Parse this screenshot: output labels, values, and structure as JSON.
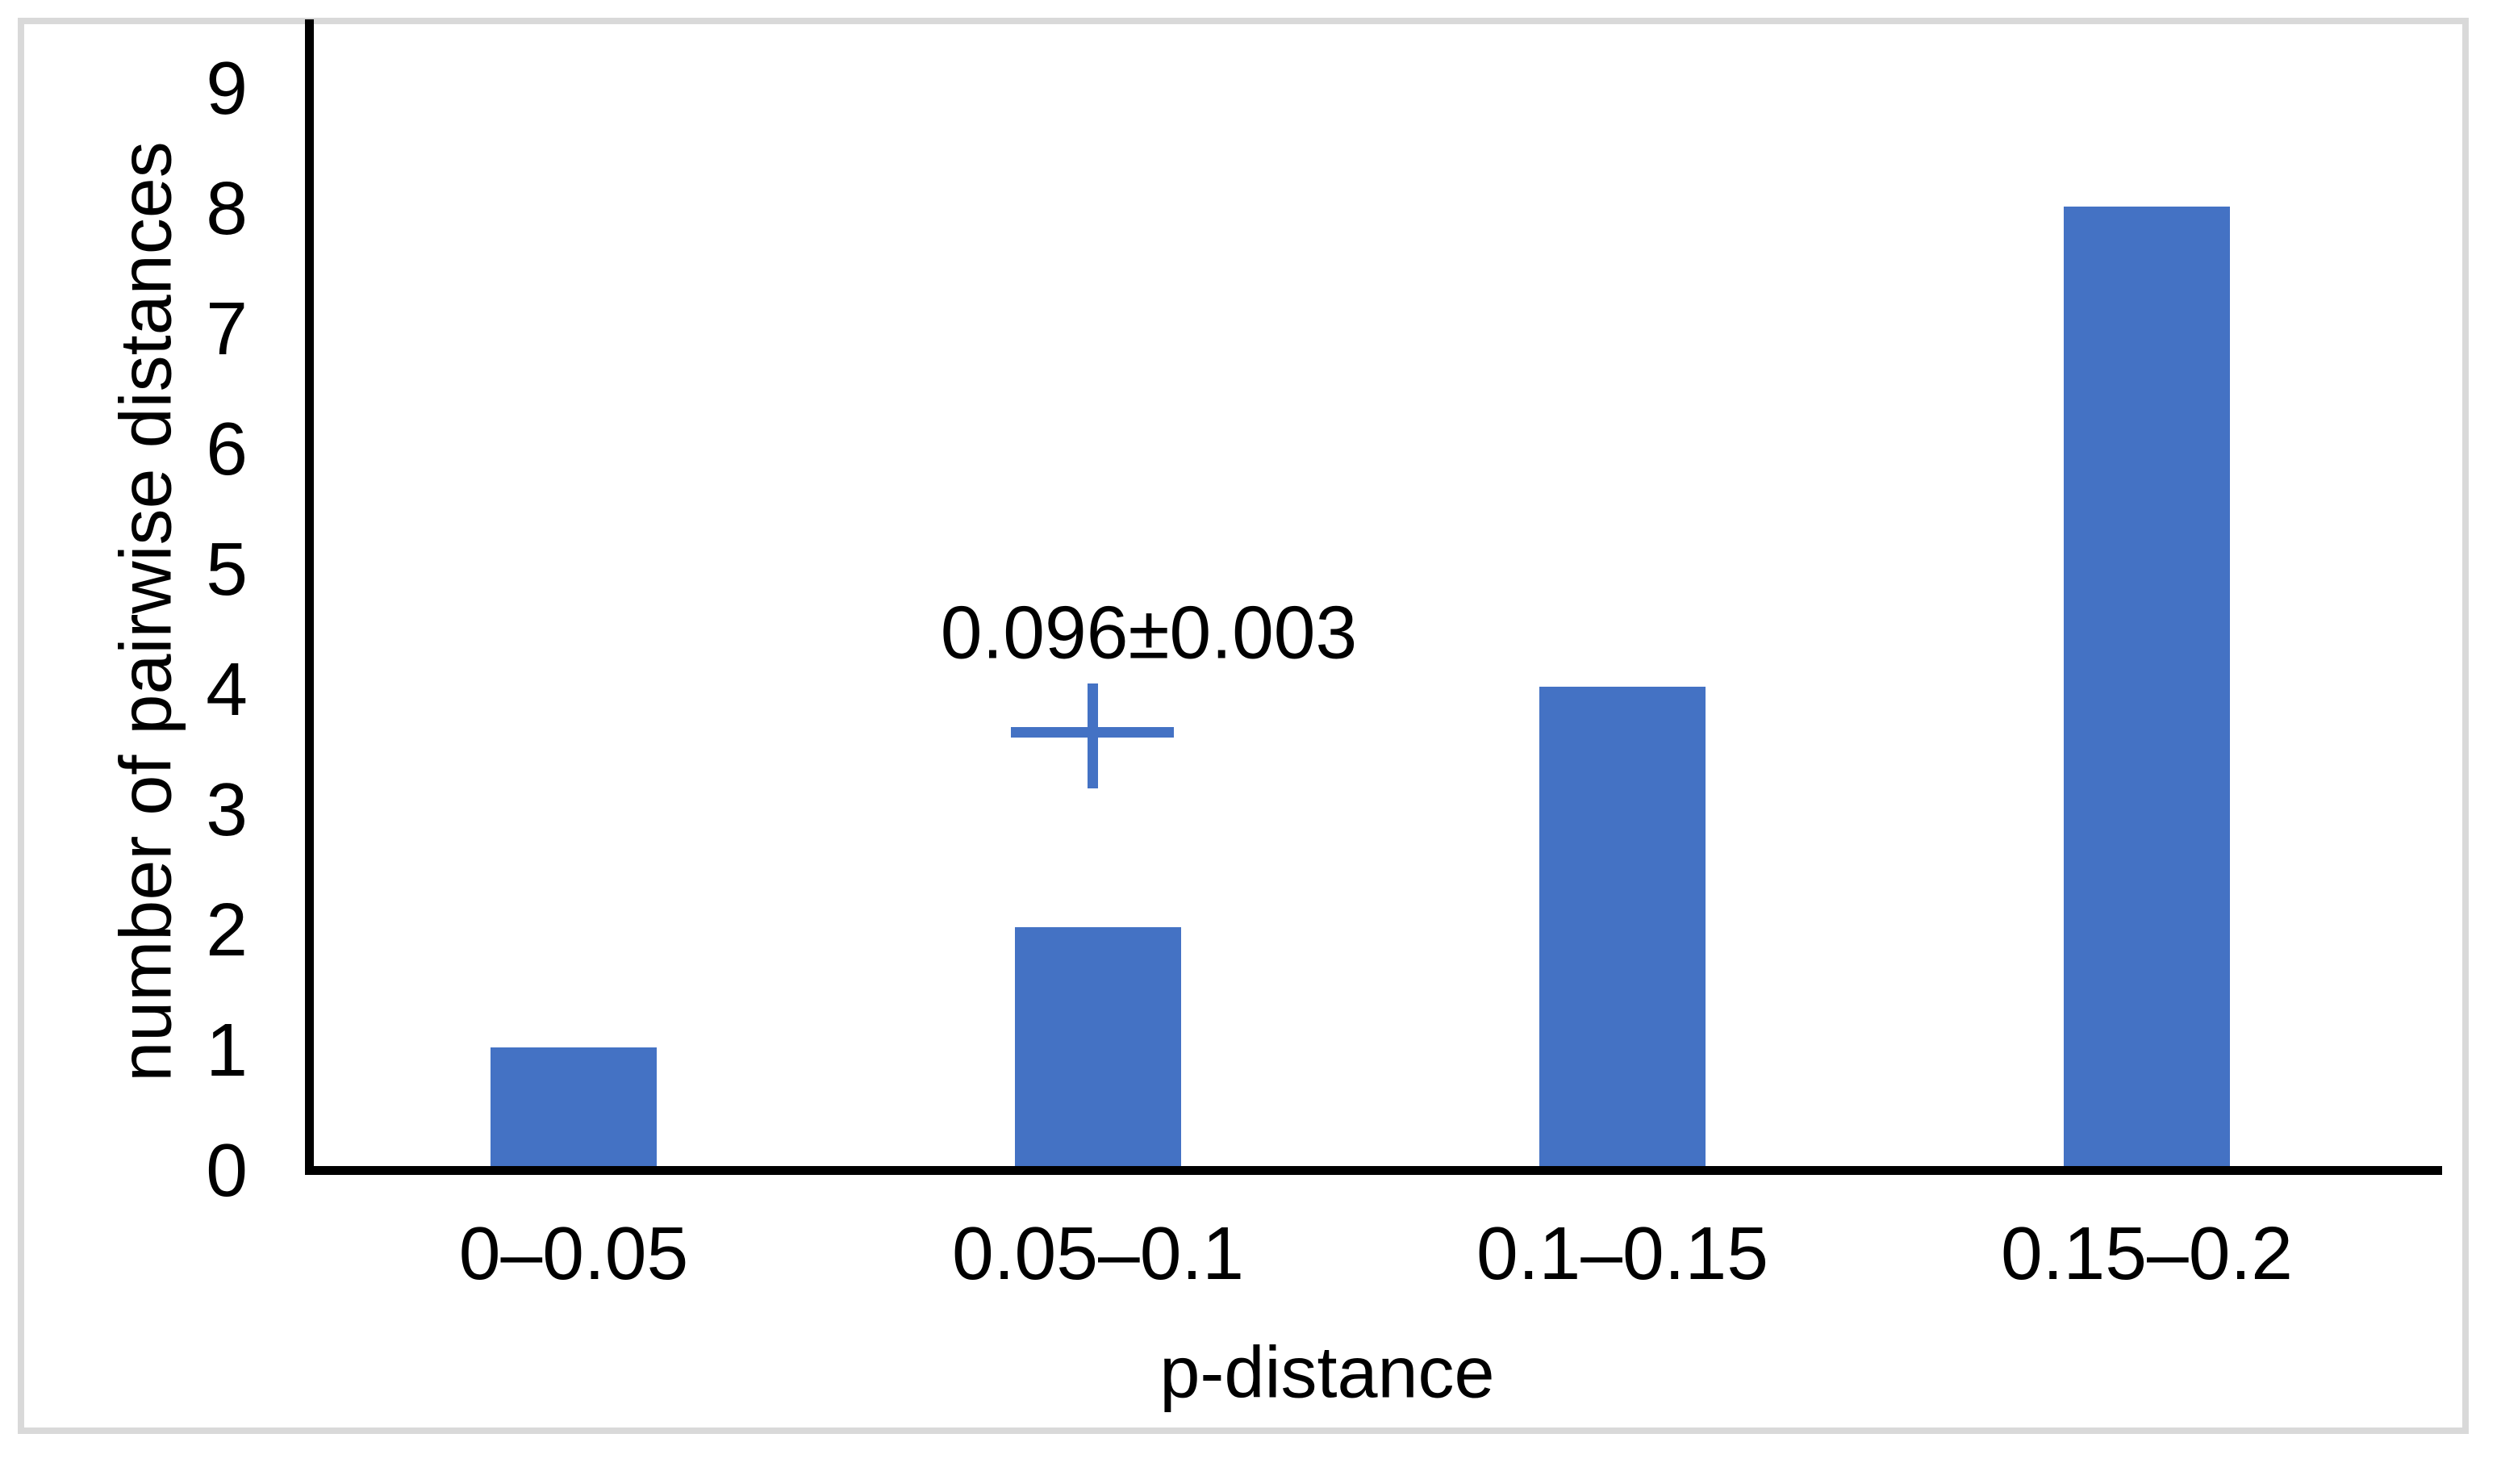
{
  "frame": {
    "border_color": "#D9D9D9",
    "background": "#FFFFFF"
  },
  "chart_data": {
    "type": "bar",
    "title": "",
    "categories": [
      "0–0.05",
      "0.05–0.1",
      "0.1–0.15",
      "0.15–0.2"
    ],
    "values": [
      1,
      2,
      4,
      8
    ],
    "xlabel": "p-distance",
    "ylabel": "number of pairwise distances",
    "y_ticks": [
      "0",
      "1",
      "2",
      "3",
      "4",
      "5",
      "6",
      "7",
      "8",
      "9"
    ],
    "ylim": [
      0,
      9
    ],
    "grid": false,
    "legend": "none",
    "bar_color": "#4472C4",
    "axis_color": "#000000",
    "text_color": "#000000",
    "annotation": {
      "text": "0.096±0.003",
      "marker": "plus-cross",
      "marker_color": "#4472C4",
      "above_category": "0.05–0.1",
      "marker_y_value": 3.65
    }
  }
}
